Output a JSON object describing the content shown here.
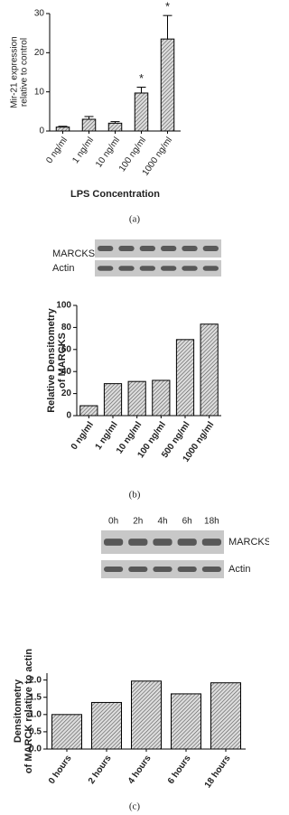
{
  "chart_data": [
    {
      "type": "bar",
      "ylabel": [
        "Mir-21 expression",
        "relative to control"
      ],
      "xlabel": "LPS Concentration",
      "caption": "(a)",
      "categories": [
        "0 ng/ml",
        "1 ng/ml",
        "10 ng/ml",
        "100 ng/ml",
        "1000 ng/ml"
      ],
      "values": [
        1,
        3,
        2,
        9.7,
        23.5
      ],
      "errors": [
        0.2,
        0.7,
        0.4,
        1.5,
        6
      ],
      "markers": [
        null,
        null,
        null,
        "*",
        "*"
      ],
      "ylim": [
        0,
        30
      ],
      "yticks": [
        0,
        10,
        20,
        30
      ],
      "color": "#9a9a9a"
    },
    {
      "type": "bar",
      "ylabel": [
        "Relative Densitometry",
        "of MARCKS"
      ],
      "caption": "(b)",
      "blot_labels": [
        "MARCKS",
        "Actin"
      ],
      "categories": [
        "0 ng/ml",
        "1 ng/ml",
        "10 ng/ml",
        "100 ng/ml",
        "500 ng/ml",
        "1000 ng/ml"
      ],
      "values": [
        9,
        29,
        31,
        32,
        69,
        83
      ],
      "ylim": [
        0,
        100
      ],
      "yticks": [
        0,
        20,
        40,
        60,
        80,
        100
      ],
      "color": "#9a9a9a"
    },
    {
      "type": "bar",
      "ylabel": [
        "Densitometry",
        "of MARCK relative to actin"
      ],
      "caption": "(c)",
      "blot_labels": [
        "MARCKS",
        "Actin"
      ],
      "lane_labels": [
        "0h",
        "2h",
        "4h",
        "6h",
        "18h"
      ],
      "categories": [
        "0 hours",
        "2 hours",
        "4 hours",
        "6 hours",
        "18 hours"
      ],
      "values": [
        1.0,
        1.35,
        1.97,
        1.6,
        1.92
      ],
      "ylim": [
        0,
        2.2
      ],
      "yticks": [
        {
          "value": 0,
          "label": "0.0"
        },
        0.5,
        {
          "value": 1,
          "label": "1.0"
        },
        1.5,
        {
          "value": 2,
          "label": "2.0"
        }
      ],
      "color": "#8a8a8a"
    }
  ]
}
